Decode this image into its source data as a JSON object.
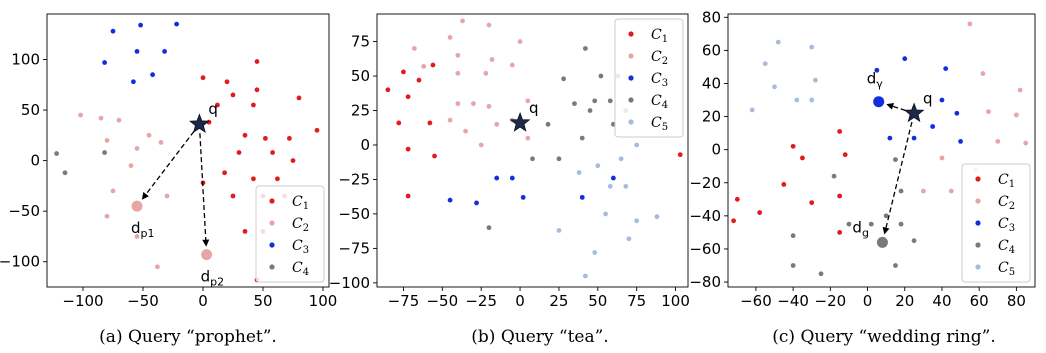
{
  "colors": {
    "C1": "#e41a1c",
    "C2": "#e8a5a5",
    "C3": "#1030e0",
    "C4": "#7a7a7a",
    "C5": "#a6bcdc",
    "query": "#1b2a49"
  },
  "chart_data": [
    {
      "type": "scatter",
      "caption": "(a) Query “prophet”.",
      "xlim": [
        -130,
        105
      ],
      "ylim": [
        -125,
        145
      ],
      "xticks": [
        -100,
        -50,
        0,
        50,
        100
      ],
      "yticks": [
        -100,
        -50,
        0,
        50,
        100
      ],
      "legend": [
        {
          "key": "C1",
          "label": "C",
          "sub": "1"
        },
        {
          "key": "C2",
          "label": "C",
          "sub": "2"
        },
        {
          "key": "C3",
          "label": "C",
          "sub": "3"
        },
        {
          "key": "C4",
          "label": "C",
          "sub": "4"
        }
      ],
      "legend_position": "bottom-right",
      "series": [
        {
          "key": "C1",
          "points": [
            [
              0,
              82
            ],
            [
              20,
              78
            ],
            [
              45,
              98
            ],
            [
              45,
              70
            ],
            [
              25,
              65
            ],
            [
              12,
              55
            ],
            [
              42,
              55
            ],
            [
              80,
              62
            ],
            [
              95,
              30
            ],
            [
              5,
              38
            ],
            [
              35,
              25
            ],
            [
              52,
              22
            ],
            [
              72,
              22
            ],
            [
              30,
              8
            ],
            [
              58,
              8
            ],
            [
              75,
              0
            ],
            [
              18,
              -12
            ],
            [
              42,
              -18
            ],
            [
              62,
              -18
            ],
            [
              0,
              -22
            ],
            [
              25,
              -35
            ],
            [
              50,
              -35
            ],
            [
              68,
              -35
            ],
            [
              35,
              -70
            ],
            [
              50,
              -70
            ],
            [
              45,
              -118
            ]
          ]
        },
        {
          "key": "C2",
          "points": [
            [
              -102,
              45
            ],
            [
              -85,
              42
            ],
            [
              -70,
              40
            ],
            [
              -45,
              25
            ],
            [
              -80,
              20
            ],
            [
              -55,
              12
            ],
            [
              -35,
              18
            ],
            [
              -60,
              -5
            ],
            [
              -75,
              -30
            ],
            [
              -30,
              -35
            ],
            [
              -80,
              -55
            ],
            [
              -55,
              -75
            ],
            [
              -38,
              -105
            ]
          ]
        },
        {
          "key": "C3",
          "points": [
            [
              -75,
              128
            ],
            [
              -52,
              134
            ],
            [
              -22,
              135
            ],
            [
              -82,
              97
            ],
            [
              -55,
              108
            ],
            [
              -32,
              108
            ],
            [
              -42,
              85
            ],
            [
              -58,
              78
            ]
          ]
        },
        {
          "key": "C4",
          "points": [
            [
              -122,
              7
            ],
            [
              -115,
              -12
            ],
            [
              -82,
              8
            ]
          ]
        }
      ],
      "query": {
        "label": "q",
        "point": [
          -3,
          36
        ]
      },
      "targets": [
        {
          "label": "d",
          "sub": "p1",
          "point": [
            -55,
            -45
          ]
        },
        {
          "label": "d",
          "sub": "p2",
          "point": [
            3,
            -93
          ]
        }
      ]
    },
    {
      "type": "scatter",
      "caption": "(b) Query “tea”.",
      "xlim": [
        -92,
        108
      ],
      "ylim": [
        -103,
        95
      ],
      "xticks": [
        -75,
        -50,
        -25,
        0,
        25,
        50,
        75,
        100
      ],
      "yticks": [
        -100,
        -75,
        -50,
        -25,
        0,
        25,
        50,
        75
      ],
      "legend": [
        {
          "key": "C1",
          "label": "C",
          "sub": "1"
        },
        {
          "key": "C2",
          "label": "C",
          "sub": "2"
        },
        {
          "key": "C3",
          "label": "C",
          "sub": "3"
        },
        {
          "key": "C4",
          "label": "C",
          "sub": "4"
        },
        {
          "key": "C5",
          "label": "C",
          "sub": "5"
        }
      ],
      "legend_position": "top-right",
      "series": [
        {
          "key": "C1",
          "points": [
            [
              -85,
              40
            ],
            [
              -75,
              53
            ],
            [
              -65,
              47
            ],
            [
              -72,
              35
            ],
            [
              -56,
              58
            ],
            [
              -78,
              16
            ],
            [
              -58,
              16
            ],
            [
              -72,
              -3
            ],
            [
              -55,
              -8
            ],
            [
              -72,
              -37
            ],
            [
              103,
              -7
            ]
          ]
        },
        {
          "key": "C2",
          "points": [
            [
              -37,
              90
            ],
            [
              -20,
              87
            ],
            [
              -45,
              78
            ],
            [
              -68,
              70
            ],
            [
              -40,
              65
            ],
            [
              -18,
              62
            ],
            [
              0,
              75
            ],
            [
              -62,
              57
            ],
            [
              -40,
              52
            ],
            [
              -22,
              52
            ],
            [
              -5,
              58
            ],
            [
              -40,
              30
            ],
            [
              -30,
              30
            ],
            [
              -20,
              28
            ],
            [
              -45,
              18
            ],
            [
              -35,
              10
            ],
            [
              -15,
              15
            ],
            [
              -5,
              18
            ],
            [
              5,
              32
            ],
            [
              -25,
              0
            ],
            [
              5,
              5
            ]
          ]
        },
        {
          "key": "C3",
          "points": [
            [
              -45,
              -40
            ],
            [
              -28,
              -42
            ],
            [
              -15,
              -24
            ],
            [
              -5,
              -24
            ],
            [
              2,
              -38
            ],
            [
              40,
              -38
            ],
            [
              60,
              -24
            ]
          ]
        },
        {
          "key": "C4",
          "points": [
            [
              42,
              70
            ],
            [
              48,
              32
            ],
            [
              58,
              32
            ],
            [
              28,
              48
            ],
            [
              52,
              50
            ],
            [
              63,
              50
            ],
            [
              35,
              30
            ],
            [
              45,
              25
            ],
            [
              68,
              25
            ],
            [
              60,
              15
            ],
            [
              18,
              15
            ],
            [
              25,
              -10
            ],
            [
              40,
              5
            ],
            [
              8,
              -10
            ],
            [
              -20,
              -60
            ]
          ]
        },
        {
          "key": "C5",
          "points": [
            [
              85,
              30
            ],
            [
              75,
              0
            ],
            [
              65,
              -10
            ],
            [
              50,
              -15
            ],
            [
              38,
              -20
            ],
            [
              58,
              -30
            ],
            [
              68,
              -30
            ],
            [
              55,
              -50
            ],
            [
              75,
              -55
            ],
            [
              88,
              -52
            ],
            [
              70,
              -68
            ],
            [
              48,
              -78
            ],
            [
              25,
              -62
            ],
            [
              42,
              -95
            ]
          ]
        }
      ],
      "query": {
        "label": "q",
        "point": [
          0,
          16
        ]
      },
      "targets": []
    },
    {
      "type": "scatter",
      "caption": "(c) Query “wedding ring”.",
      "xlim": [
        -75,
        90
      ],
      "ylim": [
        -83,
        82
      ],
      "xticks": [
        -60,
        -40,
        -20,
        0,
        20,
        40,
        60,
        80
      ],
      "yticks": [
        -80,
        -60,
        -40,
        -20,
        0,
        20,
        40,
        60,
        80
      ],
      "legend": [
        {
          "key": "C1",
          "label": "C",
          "sub": "1"
        },
        {
          "key": "C2",
          "label": "C",
          "sub": "2"
        },
        {
          "key": "C3",
          "label": "C",
          "sub": "3"
        },
        {
          "key": "C4",
          "label": "C",
          "sub": "4"
        },
        {
          "key": "C5",
          "label": "C",
          "sub": "5"
        }
      ],
      "legend_position": "bottom-right",
      "series": [
        {
          "key": "C1",
          "points": [
            [
              -40,
              2
            ],
            [
              -35,
              -5
            ],
            [
              -15,
              11
            ],
            [
              -12,
              -3
            ],
            [
              -45,
              -21
            ],
            [
              -15,
              -28
            ],
            [
              -30,
              -32
            ],
            [
              -70,
              -30
            ],
            [
              -58,
              -38
            ],
            [
              -72,
              -43
            ],
            [
              -15,
              -50
            ]
          ]
        },
        {
          "key": "C2",
          "points": [
            [
              55,
              76
            ],
            [
              62,
              46
            ],
            [
              65,
              23
            ],
            [
              80,
              21
            ],
            [
              82,
              36
            ],
            [
              70,
              5
            ],
            [
              85,
              4
            ],
            [
              58,
              -12
            ],
            [
              45,
              -25
            ],
            [
              30,
              -25
            ],
            [
              40,
              -5
            ]
          ]
        },
        {
          "key": "C3",
          "points": [
            [
              20,
              55
            ],
            [
              42,
              49
            ],
            [
              5,
              48
            ],
            [
              48,
              22
            ],
            [
              35,
              14
            ],
            [
              40,
              30
            ],
            [
              12,
              7
            ],
            [
              25,
              7
            ],
            [
              50,
              5
            ]
          ]
        },
        {
          "key": "C4",
          "points": [
            [
              -18,
              -16
            ],
            [
              15,
              -6
            ],
            [
              18,
              -25
            ],
            [
              -10,
              -45
            ],
            [
              10,
              -40
            ],
            [
              2,
              -45
            ],
            [
              -40,
              -52
            ],
            [
              18,
              -45
            ],
            [
              25,
              -55
            ],
            [
              -40,
              -70
            ],
            [
              -25,
              -75
            ],
            [
              15,
              -70
            ]
          ]
        },
        {
          "key": "C5",
          "points": [
            [
              -55,
              52
            ],
            [
              -30,
              62
            ],
            [
              -48,
              65
            ],
            [
              -28,
              42
            ],
            [
              -50,
              38
            ],
            [
              -38,
              30
            ],
            [
              -62,
              24
            ],
            [
              -30,
              30
            ]
          ]
        }
      ],
      "query": {
        "label": "q",
        "point": [
          25,
          22
        ]
      },
      "targets": [
        {
          "label": "d",
          "sub": "γ",
          "point": [
            6,
            29
          ],
          "color_key": "C3"
        },
        {
          "label": "d",
          "sub": "g",
          "point": [
            8,
            -56
          ],
          "color_key": "C4"
        }
      ]
    }
  ]
}
